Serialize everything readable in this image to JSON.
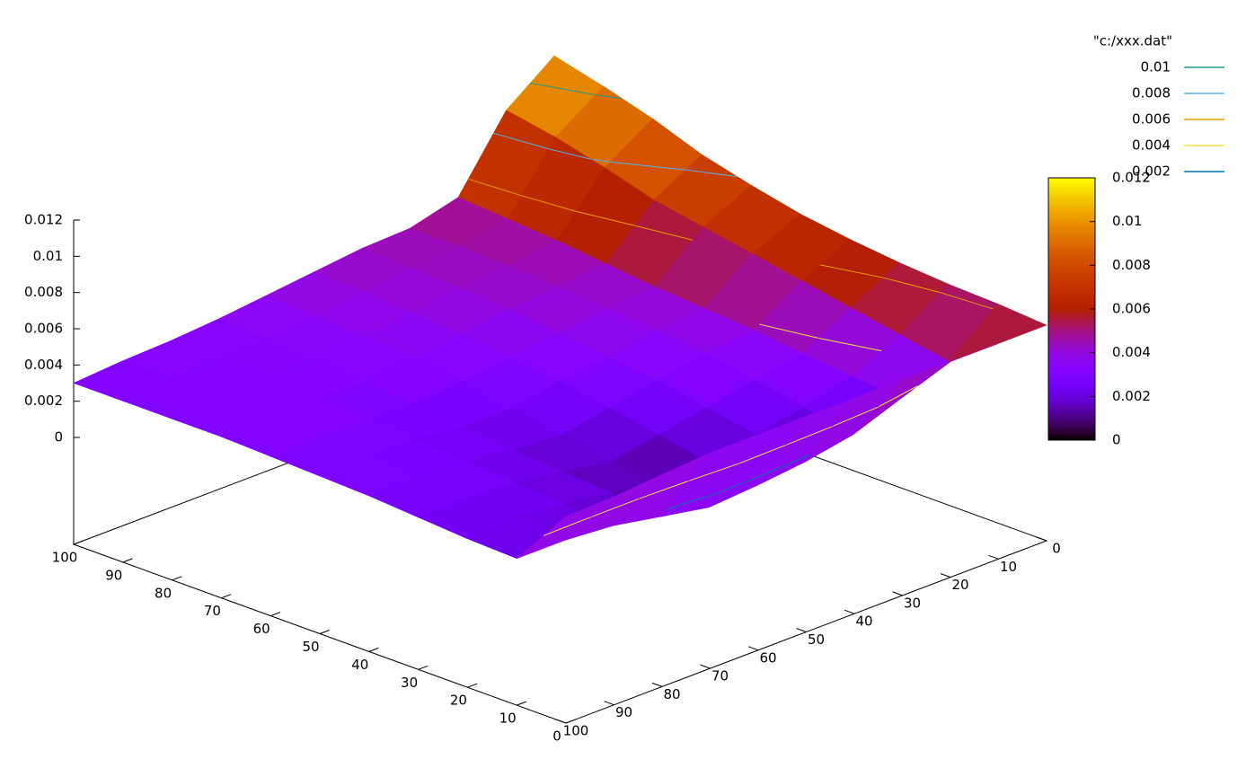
{
  "chart_data": {
    "type": "surface",
    "x": [
      0,
      10,
      20,
      30,
      40,
      50,
      60,
      70,
      80,
      90,
      100
    ],
    "y": [
      0,
      10,
      20,
      30,
      40,
      50,
      60,
      70,
      80,
      90,
      100
    ],
    "z": [
      [
        0.006,
        0.0062,
        0.0063,
        0.0065,
        0.0068,
        0.0072,
        0.0078,
        0.0085,
        0.0095,
        0.0103,
        0.011
      ],
      [
        0.006,
        0.004,
        0.0045,
        0.005,
        0.0055,
        0.006,
        0.0065,
        0.007,
        0.0078,
        0.0085,
        0.009
      ],
      [
        0.006,
        0.003,
        0.0032,
        0.0035,
        0.0038,
        0.004,
        0.0042,
        0.0045,
        0.0048,
        0.005,
        0.0052
      ],
      [
        0.006,
        0.002,
        0.0025,
        0.003,
        0.0035,
        0.0038,
        0.004,
        0.0042,
        0.0044,
        0.0045,
        0.0045
      ],
      [
        0.006,
        0.0015,
        0.002,
        0.0025,
        0.003,
        0.0033,
        0.0036,
        0.004,
        0.0042,
        0.0043,
        0.0044
      ],
      [
        0.006,
        0.0012,
        0.0015,
        0.002,
        0.0025,
        0.003,
        0.0033,
        0.0036,
        0.0038,
        0.004,
        0.0041
      ],
      [
        0.006,
        0.001,
        0.0012,
        0.0015,
        0.002,
        0.0025,
        0.003,
        0.0033,
        0.0035,
        0.0037,
        0.0038
      ],
      [
        0.006,
        0.0015,
        0.0018,
        0.002,
        0.0022,
        0.0025,
        0.0028,
        0.003,
        0.0032,
        0.0034,
        0.0035
      ],
      [
        0.0058,
        0.002,
        0.0022,
        0.0024,
        0.0026,
        0.0028,
        0.003,
        0.0031,
        0.0032,
        0.0033,
        0.0033
      ],
      [
        0.0056,
        0.0022,
        0.0024,
        0.0026,
        0.0028,
        0.003,
        0.003,
        0.0031,
        0.0031,
        0.0032,
        0.0032
      ],
      [
        0.0055,
        0.0022,
        0.0023,
        0.0025,
        0.0027,
        0.0028,
        0.0029,
        0.003,
        0.003,
        0.003,
        0.003
      ]
    ],
    "xlim": [
      0,
      100
    ],
    "ylim": [
      0,
      100
    ],
    "zlim": [
      0,
      0.012
    ],
    "xticks": [
      0,
      10,
      20,
      30,
      40,
      50,
      60,
      70,
      80,
      90,
      100
    ],
    "yticks": [
      0,
      10,
      20,
      30,
      40,
      50,
      60,
      70,
      80,
      90,
      100
    ],
    "zticks": [
      0,
      0.002,
      0.004,
      0.006,
      0.008,
      0.01,
      0.012
    ],
    "cblim": [
      0,
      0.012
    ],
    "cbticks": [
      0,
      0.002,
      0.004,
      0.006,
      0.008,
      0.01,
      0.012
    ],
    "legend": {
      "title": "\"c:/xxx.dat\"",
      "position": "top right"
    },
    "contours": [
      {
        "level": 0.01,
        "color": "#23998e"
      },
      {
        "level": 0.008,
        "color": "#56b4e9"
      },
      {
        "level": 0.006,
        "color": "#e69f00"
      },
      {
        "level": 0.004,
        "color": "#f0e442"
      },
      {
        "level": 0.002,
        "color": "#0072b2"
      }
    ]
  }
}
